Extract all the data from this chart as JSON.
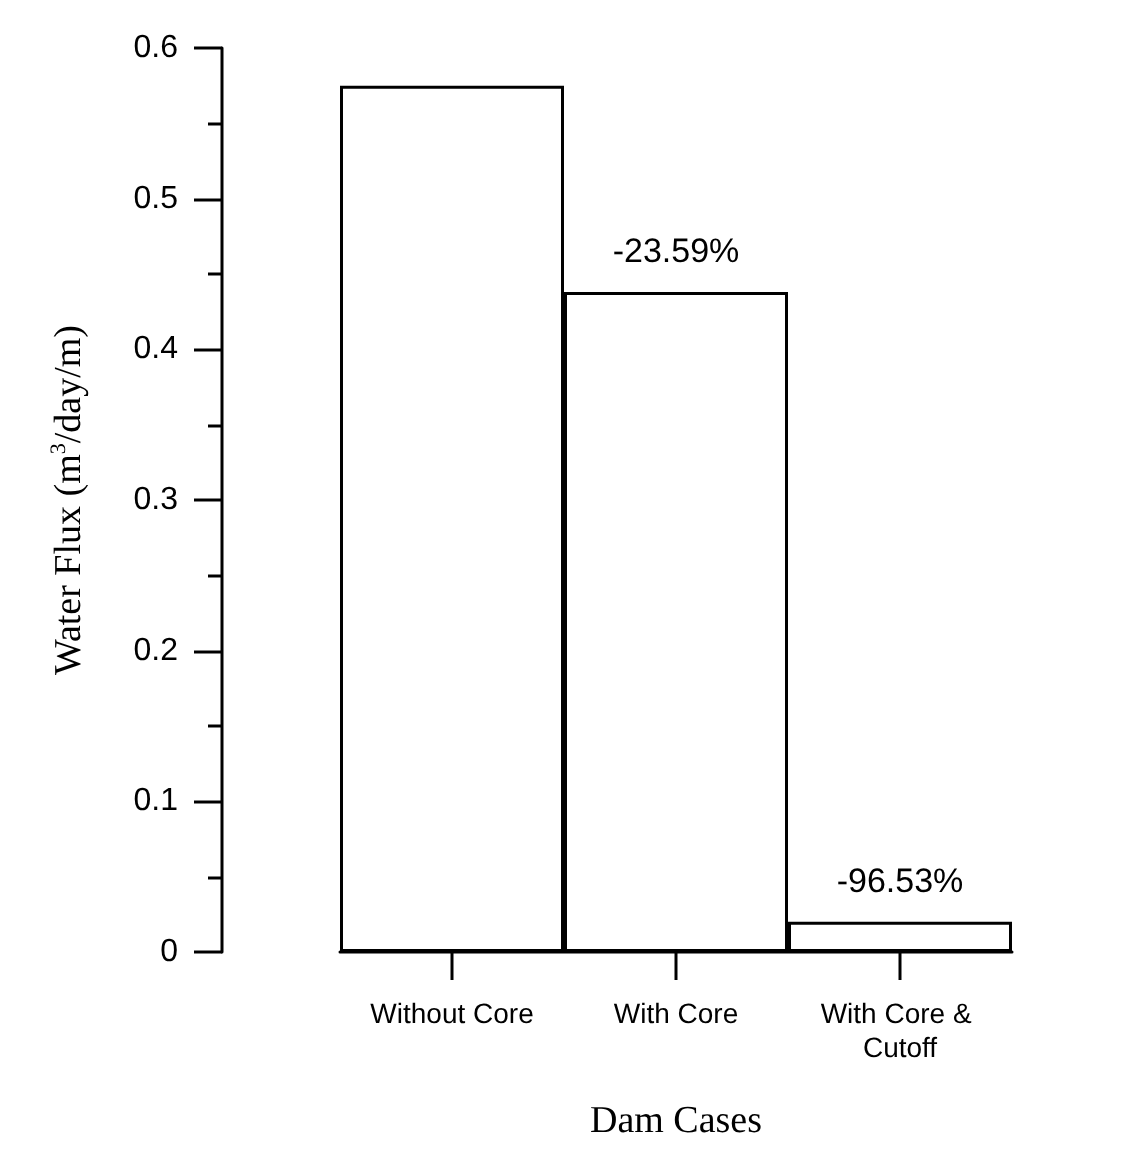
{
  "chart_data": {
    "type": "bar",
    "xlabel": "Dam Cases",
    "ylabel": "Water Flux (m$^{3}$/day/m)",
    "categories": [
      "Without Core",
      "With Core",
      "With Core & Cutoff"
    ],
    "values": [
      0.575,
      0.438,
      0.02
    ],
    "annotations": [
      {
        "text": "-23.59%",
        "x": "With Core",
        "y": 0.438
      },
      {
        "text": "-96.53%",
        "x": "With Core & Cutoff",
        "y": 0.02
      }
    ],
    "color": "#ffffff",
    "ylim": [
      0,
      0.6
    ],
    "yticks": [
      0,
      0.1,
      0.2,
      0.3,
      0.4,
      0.5,
      0.6
    ],
    "grid": false
  }
}
